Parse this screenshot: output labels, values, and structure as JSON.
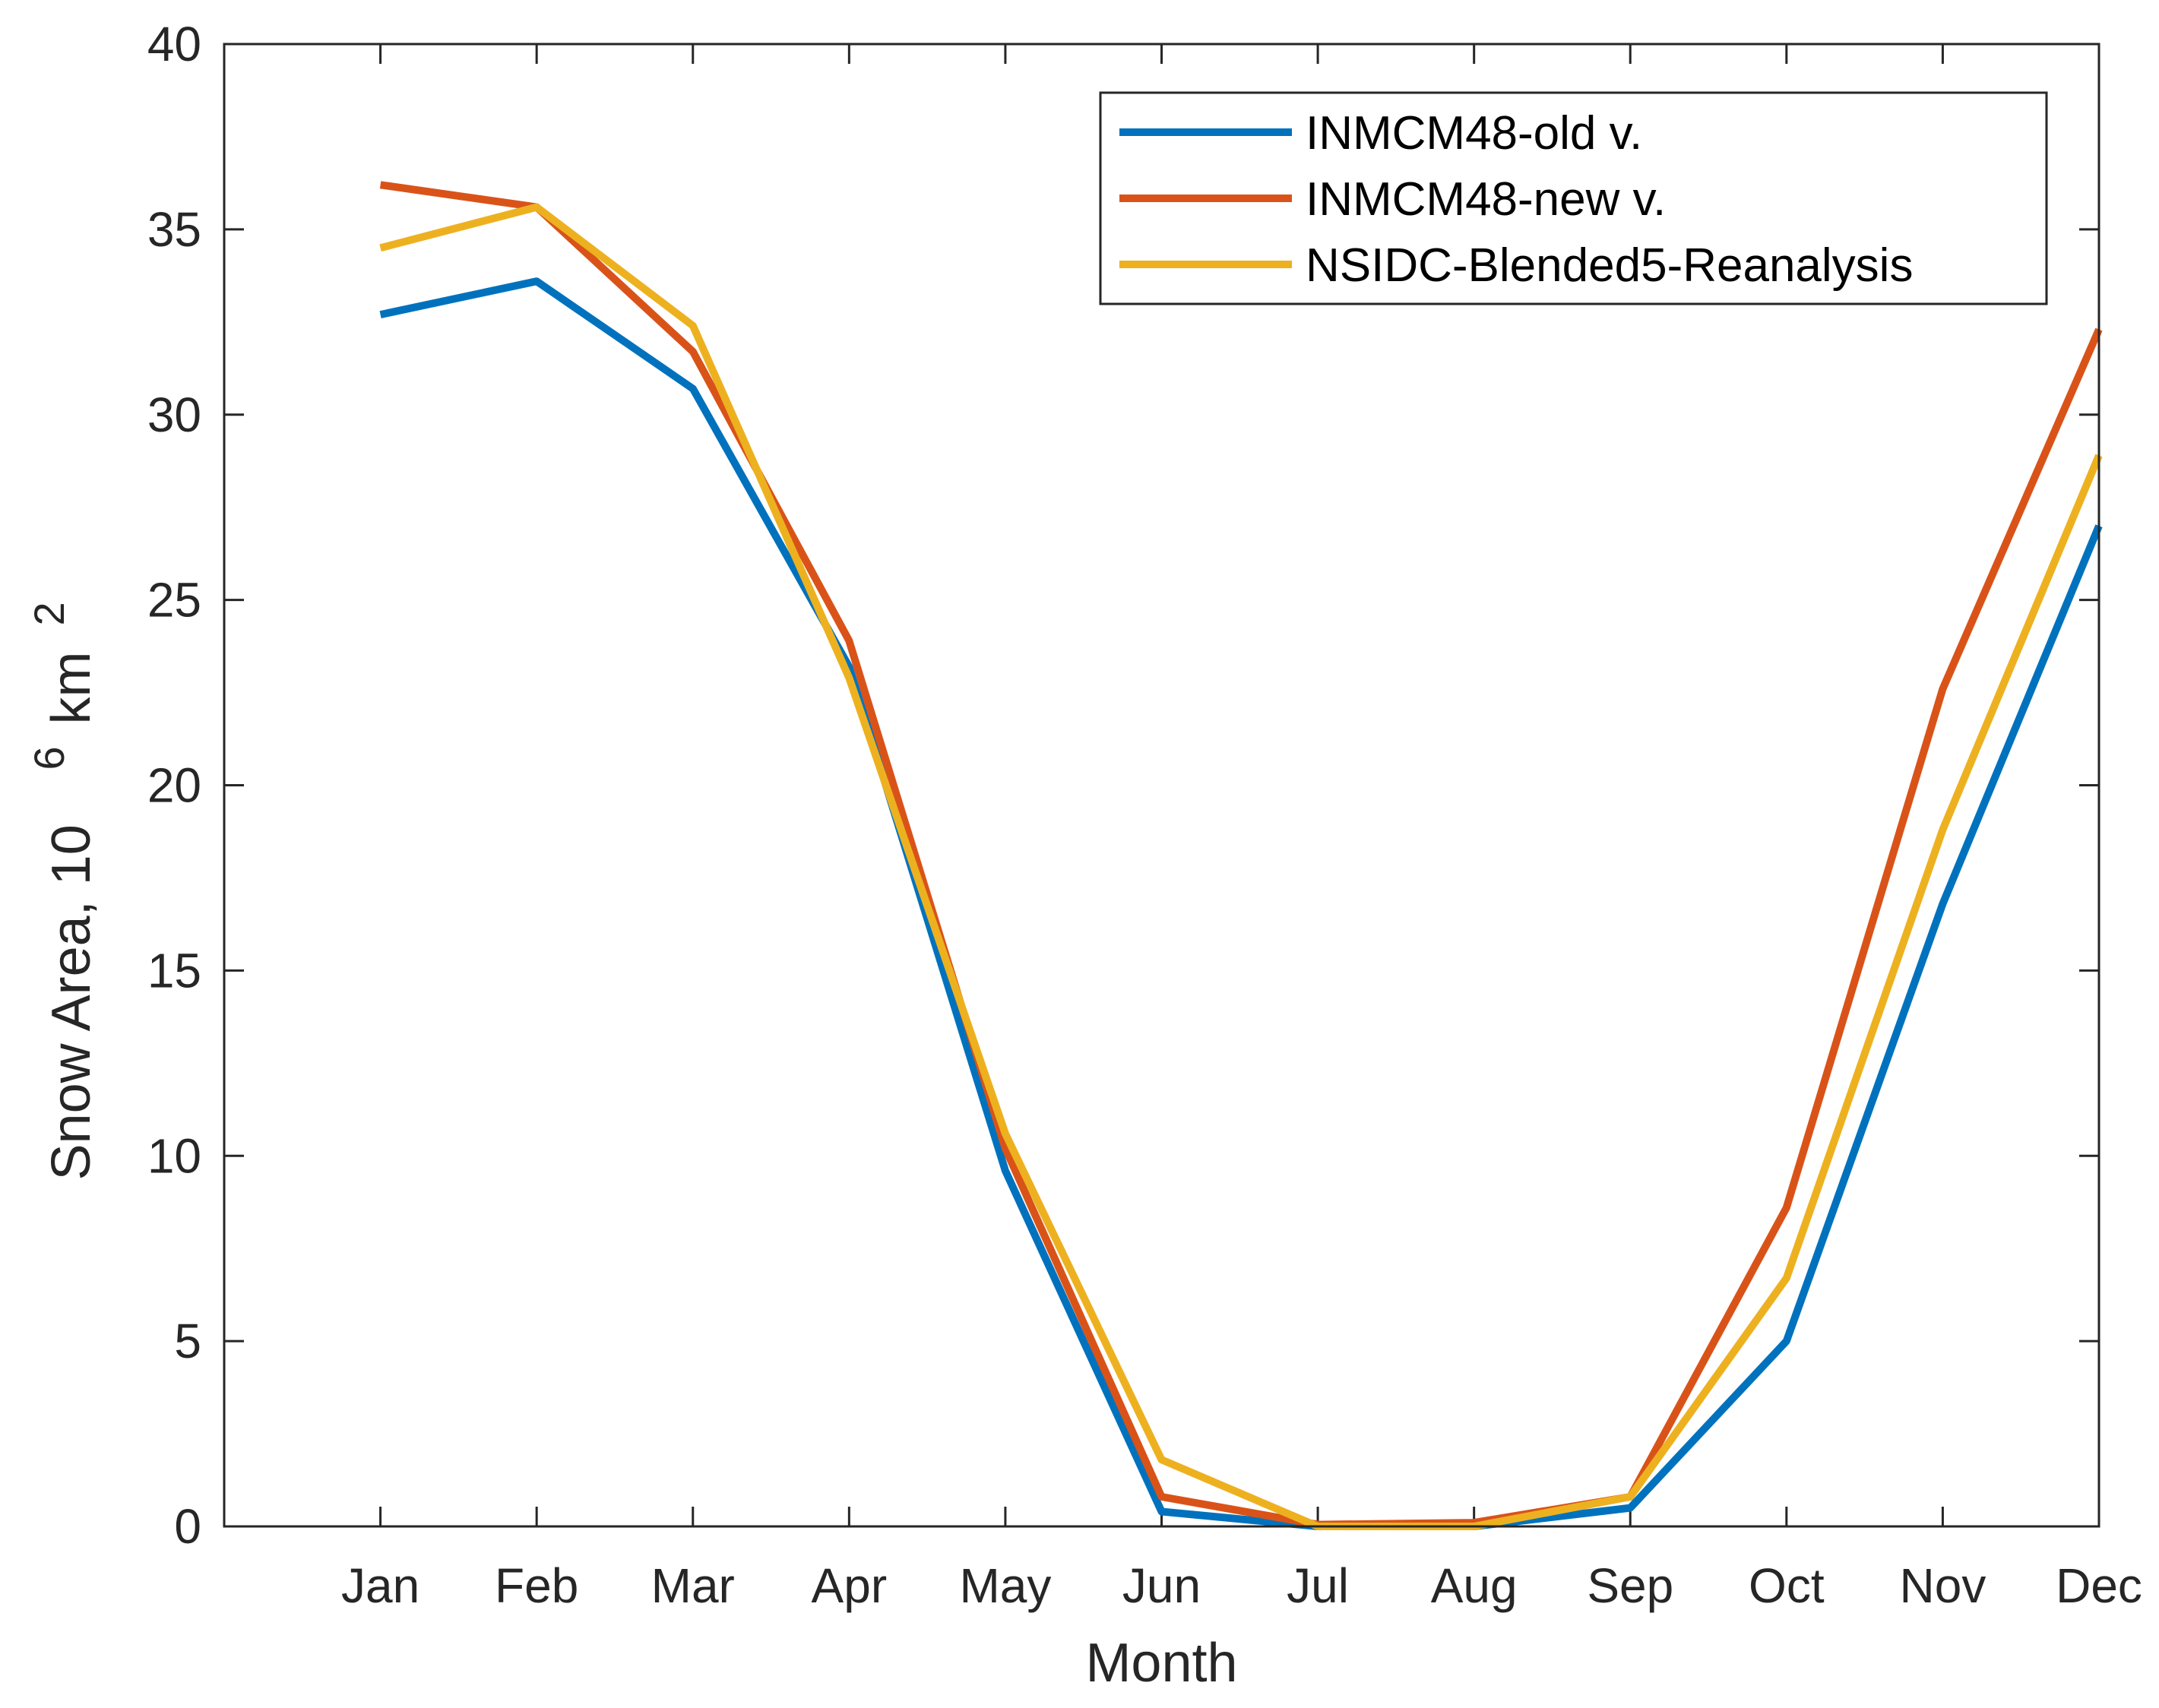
{
  "chart_data": {
    "type": "line",
    "title": "",
    "xlabel": "Month",
    "ylabel": {
      "main": "Snow Area, 10",
      "exp": "6",
      "unit": "km",
      "unit_exp": "2"
    },
    "categories": [
      "Jan",
      "Feb",
      "Mar",
      "Apr",
      "May",
      "Jun",
      "Jul",
      "Aug",
      "Sep",
      "Oct",
      "Nov",
      "Dec"
    ],
    "x_range": [
      0,
      12
    ],
    "ylim": [
      0,
      40
    ],
    "yticks": [
      "0",
      "5",
      "10",
      "15",
      "20",
      "25",
      "30",
      "35",
      "40"
    ],
    "grid": false,
    "legend_position": "top-right",
    "series": [
      {
        "name": "INMCM48-old v.",
        "color": "#0072BD",
        "values": [
          32.7,
          33.6,
          30.7,
          23.2,
          9.6,
          0.4,
          0.0,
          0.0,
          0.5,
          5.0,
          16.8,
          27.0
        ]
      },
      {
        "name": "INMCM48-new v.",
        "color": "#D95319",
        "values": [
          36.2,
          35.6,
          31.7,
          23.9,
          10.2,
          0.8,
          0.05,
          0.1,
          0.8,
          8.6,
          22.6,
          32.3
        ]
      },
      {
        "name": "NSIDC-Blended5-Reanalysis",
        "color": "#EDB120",
        "values": [
          34.5,
          35.6,
          32.4,
          22.9,
          10.6,
          1.8,
          0.0,
          0.0,
          0.8,
          6.7,
          18.8,
          28.9
        ]
      }
    ]
  }
}
